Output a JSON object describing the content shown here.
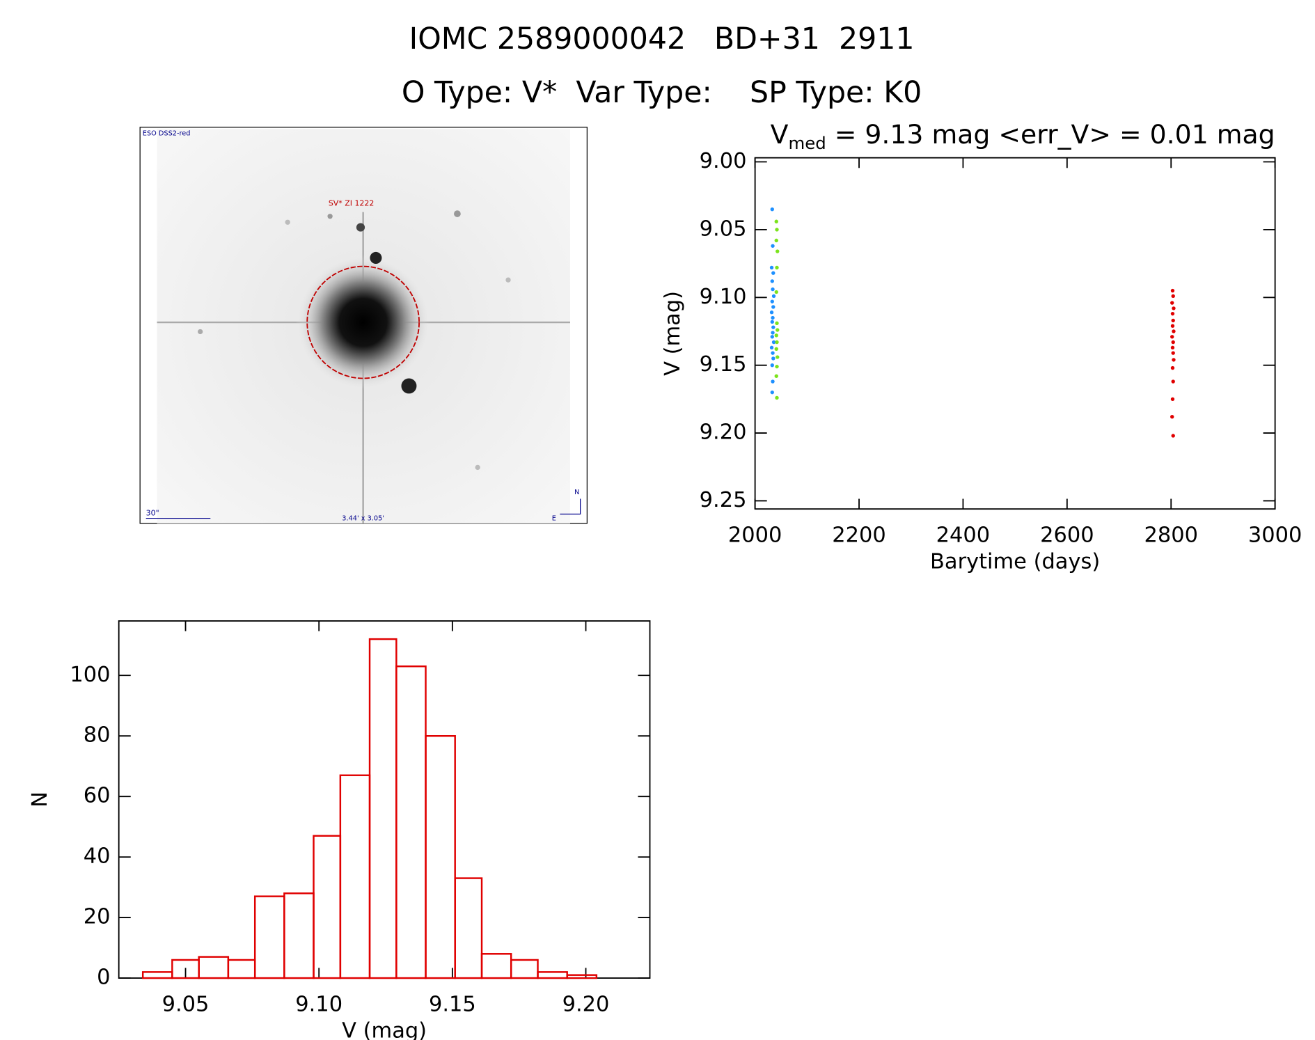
{
  "header": {
    "title": "IOMC 2589000042   BD+31  2911",
    "subtitle": "O Type: V*  Var Type:    SP Type: K0"
  },
  "finder": {
    "survey": "ESO DSS2-red",
    "target": "SV* ZI 1222",
    "scale": "30\"",
    "field": "3.44' x 3.05'",
    "north": "N",
    "east": "E"
  },
  "chart_data": [
    {
      "type": "scatter",
      "title": {
        "symbol": "V",
        "subscript": "med",
        "text": " = 9.13 mag <err_V> = 0.01 mag"
      },
      "xlabel": "Barytime (days)",
      "ylabel": "V (mag)",
      "xlim": [
        2000,
        3000
      ],
      "ylim": [
        9.256,
        8.997
      ],
      "xticks": [
        2000,
        2200,
        2400,
        2600,
        2800,
        3000
      ],
      "yticks": [
        {
          "value": 9.0,
          "label": "9.00"
        },
        {
          "value": 9.05,
          "label": "9.05"
        },
        {
          "value": 9.1,
          "label": "9.10"
        },
        {
          "value": 9.15,
          "label": "9.15"
        },
        {
          "value": 9.2,
          "label": "9.20"
        },
        {
          "value": 9.25,
          "label": "9.25"
        }
      ],
      "series": [
        {
          "color": "#1e90ff",
          "x": [
            2033,
            2034,
            2032,
            2035,
            2033,
            2034,
            2036,
            2033,
            2035,
            2032,
            2034,
            2033,
            2035,
            2034,
            2033,
            2036,
            2032,
            2034,
            2035,
            2033,
            2034,
            2033
          ],
          "values": [
            9.035,
            9.062,
            9.078,
            9.082,
            9.088,
            9.094,
            9.099,
            9.103,
            9.107,
            9.111,
            9.115,
            9.118,
            9.122,
            9.126,
            9.129,
            9.133,
            9.137,
            9.141,
            9.145,
            9.15,
            9.162,
            9.17
          ]
        },
        {
          "color": "#7be31c",
          "x": [
            2041,
            2042,
            2041,
            2043,
            2042,
            2041,
            2042,
            2043,
            2041,
            2042,
            2041,
            2043,
            2042,
            2041,
            2042
          ],
          "values": [
            9.044,
            9.05,
            9.058,
            9.066,
            9.078,
            9.096,
            9.119,
            9.124,
            9.128,
            9.133,
            9.138,
            9.144,
            9.151,
            9.158,
            9.174
          ]
        },
        {
          "color": "#e00000",
          "x": [
            2803,
            2804,
            2802,
            2805,
            2803,
            2804,
            2803,
            2805,
            2802,
            2804,
            2803,
            2804,
            2805,
            2803,
            2804,
            2803,
            2802,
            2804
          ],
          "values": [
            9.095,
            9.099,
            9.104,
            9.108,
            9.112,
            9.117,
            9.121,
            9.125,
            9.129,
            9.133,
            9.137,
            9.141,
            9.146,
            9.152,
            9.162,
            9.175,
            9.188,
            9.202
          ]
        }
      ]
    },
    {
      "type": "histogram",
      "xlabel": "V (mag)",
      "ylabel": "N",
      "color": "#e00000",
      "xlim": [
        9.025,
        9.224
      ],
      "ylim": [
        0,
        118
      ],
      "xticks": [
        {
          "value": 9.05,
          "label": "9.05"
        },
        {
          "value": 9.1,
          "label": "9.10"
        },
        {
          "value": 9.15,
          "label": "9.15"
        },
        {
          "value": 9.2,
          "label": "9.20"
        }
      ],
      "yticks": [
        0,
        20,
        40,
        60,
        80,
        100
      ],
      "bins": [
        9.034,
        9.045,
        9.055,
        9.066,
        9.076,
        9.087,
        9.098,
        9.108,
        9.119,
        9.129,
        9.14,
        9.151,
        9.161,
        9.172,
        9.182,
        9.193,
        9.204
      ],
      "values": [
        2,
        6,
        7,
        6,
        27,
        28,
        47,
        67,
        112,
        103,
        80,
        33,
        8,
        6,
        2,
        1
      ]
    }
  ]
}
